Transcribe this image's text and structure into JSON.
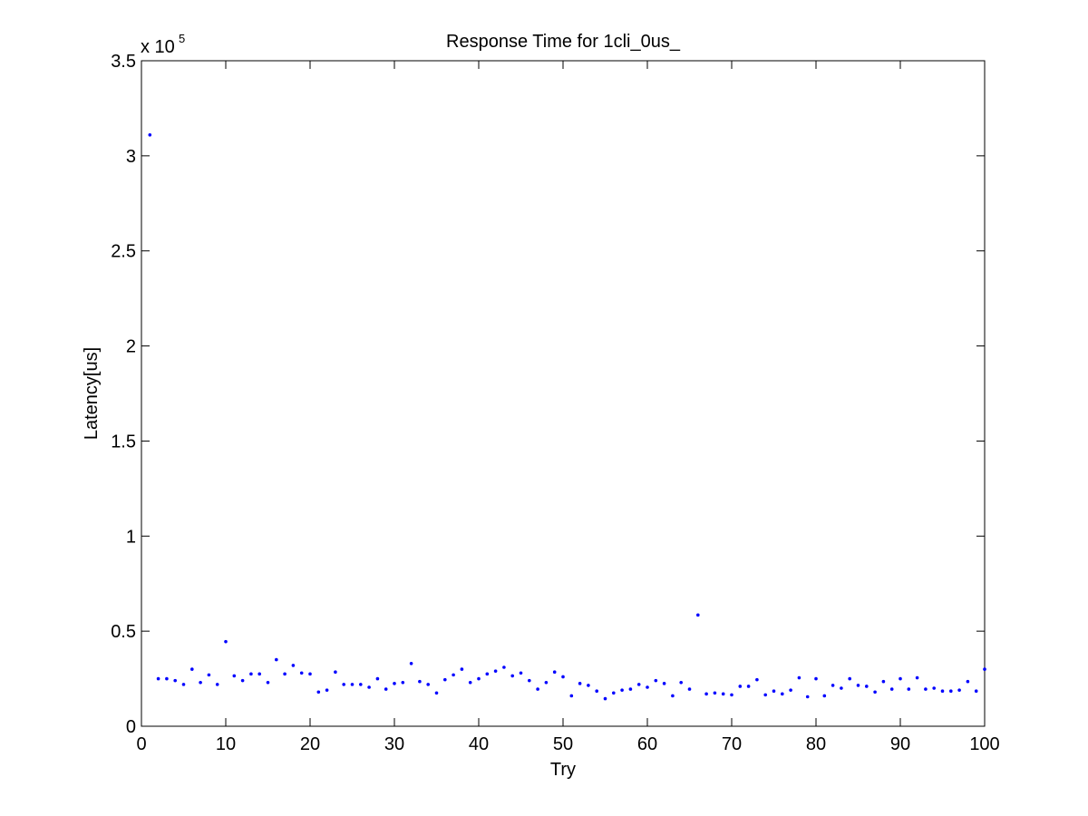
{
  "chart_data": {
    "type": "scatter",
    "title": "Response Time for 1cli_0us_",
    "xlabel": "Try",
    "ylabel": "Latency[us]",
    "y_exponent_label": "x 10",
    "y_exponent_power": "5",
    "xlim": [
      0,
      100
    ],
    "ylim": [
      0,
      350000
    ],
    "x_ticks": [
      0,
      10,
      20,
      30,
      40,
      50,
      60,
      70,
      80,
      90,
      100
    ],
    "x_tick_labels": [
      "0",
      "10",
      "20",
      "30",
      "40",
      "50",
      "60",
      "70",
      "80",
      "90",
      "100"
    ],
    "y_ticks": [
      0,
      50000,
      100000,
      150000,
      200000,
      250000,
      300000,
      350000
    ],
    "y_tick_labels": [
      "0",
      "0.5",
      "1",
      "1.5",
      "2",
      "2.5",
      "3",
      "3.5"
    ],
    "grid": false,
    "marker_color": "#0000ff",
    "x": [
      1,
      2,
      3,
      4,
      5,
      6,
      7,
      8,
      9,
      10,
      11,
      12,
      13,
      14,
      15,
      16,
      17,
      18,
      19,
      20,
      21,
      22,
      23,
      24,
      25,
      26,
      27,
      28,
      29,
      30,
      31,
      32,
      33,
      34,
      35,
      36,
      37,
      38,
      39,
      40,
      41,
      42,
      43,
      44,
      45,
      46,
      47,
      48,
      49,
      50,
      51,
      52,
      53,
      54,
      55,
      56,
      57,
      58,
      59,
      60,
      61,
      62,
      63,
      64,
      65,
      66,
      67,
      68,
      69,
      70,
      71,
      72,
      73,
      74,
      75,
      76,
      77,
      78,
      79,
      80,
      81,
      82,
      83,
      84,
      85,
      86,
      87,
      88,
      89,
      90,
      91,
      92,
      93,
      94,
      95,
      96,
      97,
      98,
      99,
      100
    ],
    "y": [
      311000,
      25000,
      25000,
      24000,
      22000,
      30000,
      23000,
      27000,
      22000,
      44500,
      26500,
      24000,
      27500,
      27500,
      23000,
      35000,
      27500,
      32000,
      28000,
      27500,
      18000,
      19000,
      28500,
      22000,
      22000,
      22000,
      20500,
      25000,
      19500,
      22500,
      23000,
      33000,
      23500,
      22000,
      17500,
      24500,
      27000,
      30000,
      23000,
      25000,
      27500,
      29000,
      31000,
      26500,
      28000,
      24000,
      19500,
      23000,
      28500,
      26000,
      16000,
      22500,
      21500,
      18500,
      14500,
      17500,
      19000,
      19500,
      22000,
      20500,
      24000,
      22500,
      16000,
      23000,
      19500,
      58500,
      17000,
      17500,
      17000,
      16500,
      21000,
      21000,
      24500,
      16500,
      18500,
      17000,
      19000,
      25500,
      15500,
      25000,
      16000,
      21500,
      20000,
      25000,
      21500,
      21000,
      18000,
      23500,
      19500,
      25000,
      19500,
      25500,
      19500,
      20000,
      18500,
      18500,
      19000,
      23500,
      18500,
      30000
    ]
  }
}
